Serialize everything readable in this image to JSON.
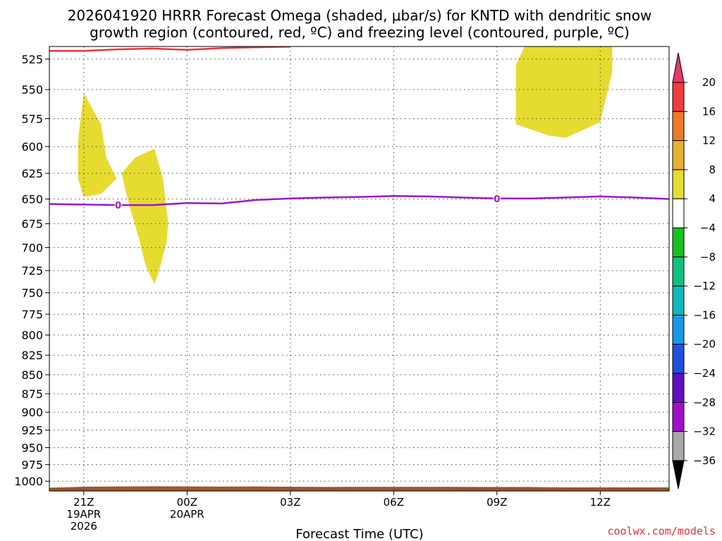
{
  "header": {
    "title_line1": "2026041920 HRRR Forecast Omega (shaded, μbar/s) for KNTD with dendritic snow",
    "title_line2": "growth region (contoured, red, ºC) and freezing level (contoured, purple, ºC)"
  },
  "footer": {
    "xlabel": "Forecast Time (UTC)",
    "credit": "coolwx.com/models"
  },
  "chart_data": {
    "type": "area",
    "x_unit": "hours_from_2026-04-19_20Z",
    "xlim": [
      0,
      18
    ],
    "x_ticks": [
      {
        "x": 1,
        "lines": [
          "21Z",
          "19APR",
          "2026"
        ]
      },
      {
        "x": 4,
        "lines": [
          "00Z",
          "20APR"
        ]
      },
      {
        "x": 7,
        "lines": [
          "03Z"
        ]
      },
      {
        "x": 10,
        "lines": [
          "06Z"
        ]
      },
      {
        "x": 13,
        "lines": [
          "09Z"
        ]
      },
      {
        "x": 16,
        "lines": [
          "12Z"
        ]
      }
    ],
    "ylabel": "",
    "y_ticks": [
      525,
      550,
      575,
      600,
      625,
      650,
      675,
      700,
      725,
      750,
      775,
      800,
      825,
      850,
      875,
      900,
      925,
      950,
      975,
      1000
    ],
    "ylim": [
      1015,
      515
    ],
    "y_scale": "log-pressure",
    "grid": true,
    "colorbar": {
      "levels": [
        "20",
        "16",
        "12",
        "8",
        "4",
        "−4",
        "−8",
        "−12",
        "−16",
        "−20",
        "−24",
        "−28",
        "−32",
        "−36"
      ],
      "colors": [
        "#e8386a",
        "#f03c3c",
        "#ee7a26",
        "#e8b030",
        "#e6dc30",
        "#ffffff",
        "#18c020",
        "#10c080",
        "#10b8c0",
        "#1898e8",
        "#2050e0",
        "#6010c0",
        "#a010c8",
        "#a8a8a8",
        "#000000"
      ]
    },
    "omega_shaded": [
      {
        "fill": "#e6dc30",
        "points": [
          [
            0.83,
            595
          ],
          [
            1.0,
            553
          ],
          [
            1.5,
            580
          ],
          [
            1.65,
            610
          ],
          [
            1.95,
            630
          ],
          [
            1.5,
            645
          ],
          [
            1.0,
            648
          ],
          [
            0.83,
            630
          ]
        ]
      },
      {
        "fill": "#e6dc30",
        "points": [
          [
            2.1,
            625
          ],
          [
            2.5,
            610
          ],
          [
            3.05,
            602
          ],
          [
            3.3,
            630
          ],
          [
            3.45,
            675
          ],
          [
            3.4,
            695
          ],
          [
            3.15,
            730
          ],
          [
            3.05,
            740
          ],
          [
            2.8,
            720
          ],
          [
            2.6,
            690
          ],
          [
            2.35,
            660
          ],
          [
            2.2,
            640
          ]
        ]
      },
      {
        "fill": "#e6dc30",
        "points": [
          [
            13.55,
            530
          ],
          [
            13.8,
            515
          ],
          [
            16.35,
            515
          ],
          [
            16.35,
            535
          ],
          [
            16.0,
            578
          ],
          [
            15.0,
            592
          ],
          [
            14.5,
            590
          ],
          [
            13.55,
            580
          ]
        ]
      }
    ],
    "series": [
      {
        "name": "dendritic snow growth region",
        "color": "#e8363a",
        "points": [
          [
            0,
            518.5
          ],
          [
            1.0,
            518.5
          ],
          [
            2.0,
            517.2
          ],
          [
            3.0,
            516.6
          ],
          [
            4.0,
            517.6
          ],
          [
            5.0,
            516.3
          ],
          [
            6.0,
            515.6
          ],
          [
            7.0,
            515.1
          ]
        ]
      },
      {
        "name": "freezing level",
        "color": "#9c18c8",
        "label": "0",
        "label_x": [
          2.0,
          13.0
        ],
        "points": [
          [
            0,
            655
          ],
          [
            1.0,
            655.5
          ],
          [
            2.0,
            656
          ],
          [
            3.0,
            656
          ],
          [
            4.0,
            654
          ],
          [
            5.0,
            654.5
          ],
          [
            6.0,
            651
          ],
          [
            7.0,
            649.5
          ],
          [
            8.0,
            648.5
          ],
          [
            9.0,
            648
          ],
          [
            10.0,
            647
          ],
          [
            11.0,
            647.5
          ],
          [
            12.0,
            648.5
          ],
          [
            13.0,
            649.5
          ],
          [
            14.0,
            649.5
          ],
          [
            15.0,
            648.5
          ],
          [
            16.0,
            647.5
          ],
          [
            17.0,
            648.5
          ],
          [
            18.0,
            650
          ]
        ]
      }
    ],
    "terrain": {
      "color": "#a0522d",
      "points": [
        [
          0,
          1010
        ],
        [
          1.0,
          1008.5
        ],
        [
          2.0,
          1008
        ],
        [
          3.0,
          1007.8
        ],
        [
          4.0,
          1008
        ],
        [
          5.0,
          1008.2
        ],
        [
          6.0,
          1008
        ],
        [
          7.0,
          1008.5
        ],
        [
          8.0,
          1008.7
        ],
        [
          10.0,
          1008.6
        ],
        [
          12.0,
          1008.7
        ],
        [
          14.0,
          1008.9
        ],
        [
          15.0,
          1009.5
        ],
        [
          18.0,
          1009.5
        ]
      ]
    }
  }
}
